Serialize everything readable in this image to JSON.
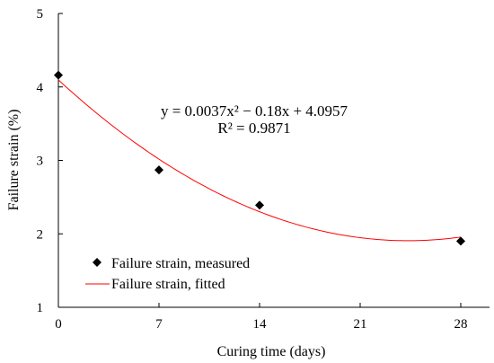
{
  "chart_data": {
    "type": "scatter",
    "xlabel": "Curing time (days)",
    "ylabel": "Failure strain (%)",
    "xlim": [
      0,
      30
    ],
    "ylim": [
      1,
      5
    ],
    "x_ticks": [
      "0",
      "7",
      "14",
      "21",
      "28"
    ],
    "y_ticks": [
      "1",
      "2",
      "3",
      "4",
      "5"
    ],
    "grid": false,
    "legend_position": "bottom-left",
    "series": [
      {
        "name": "Failure strain, measured",
        "kind": "scatter",
        "marker": "diamond",
        "color": "#000000",
        "x": [
          0,
          7,
          14,
          28
        ],
        "y": [
          4.16,
          2.87,
          2.39,
          1.9
        ]
      },
      {
        "name": "Failure strain, fitted",
        "kind": "line",
        "color": "#ff0000",
        "equation": {
          "a": 0.0037,
          "b": -0.18,
          "c": 4.0957
        },
        "x_range": [
          0,
          28
        ]
      }
    ],
    "annotations": [
      "y = 0.0037x² − 0.18x + 4.0957",
      "R² = 0.9871"
    ]
  }
}
